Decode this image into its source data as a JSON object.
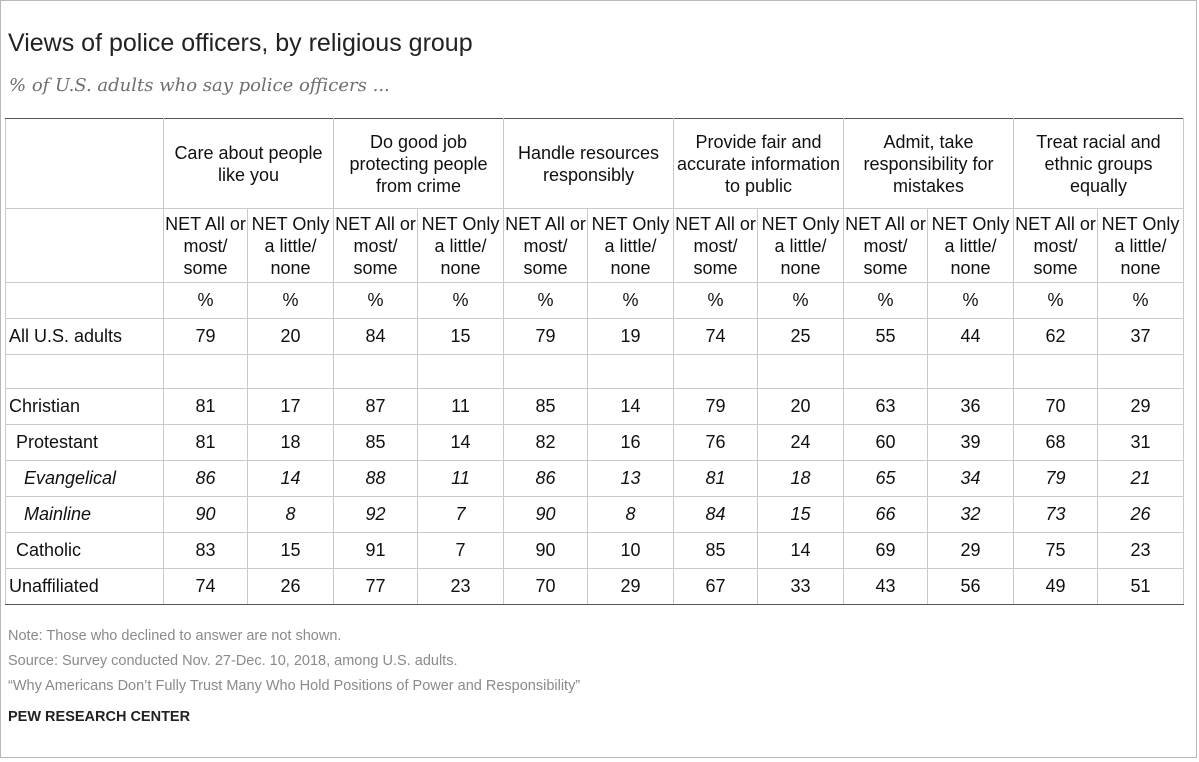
{
  "title": "Views of police officers, by religious group",
  "subtitle": "% of U.S. adults who say police officers ...",
  "groups": [
    "Care about people like you",
    "Do good job protecting people from crime",
    "Handle resources responsibly",
    "Provide fair and accurate information to public",
    "Admit, take responsibility for mistakes",
    "Treat racial and ethnic groups equally"
  ],
  "subheaders": {
    "net_all": "NET All or most/ some",
    "net_only": "NET Only a little/ none",
    "pct": "%"
  },
  "rows": [
    {
      "label": "All U.S. adults",
      "values": [
        "79",
        "20",
        "84",
        "15",
        "79",
        "19",
        "74",
        "25",
        "55",
        "44",
        "62",
        "37"
      ]
    },
    {
      "label": "Christian",
      "values": [
        "81",
        "17",
        "87",
        "11",
        "85",
        "14",
        "79",
        "20",
        "63",
        "36",
        "70",
        "29"
      ]
    },
    {
      "label": "Protestant",
      "values": [
        "81",
        "18",
        "85",
        "14",
        "82",
        "16",
        "76",
        "24",
        "60",
        "39",
        "68",
        "31"
      ]
    },
    {
      "label": "Evangelical",
      "values": [
        "86",
        "14",
        "88",
        "11",
        "86",
        "13",
        "81",
        "18",
        "65",
        "34",
        "79",
        "21"
      ]
    },
    {
      "label": "Mainline",
      "values": [
        "90",
        "8",
        "92",
        "7",
        "90",
        "8",
        "84",
        "15",
        "66",
        "32",
        "73",
        "26"
      ]
    },
    {
      "label": "Catholic",
      "values": [
        "83",
        "15",
        "91",
        "7",
        "90",
        "10",
        "85",
        "14",
        "69",
        "29",
        "75",
        "23"
      ]
    },
    {
      "label": "Unaffiliated",
      "values": [
        "74",
        "26",
        "77",
        "23",
        "70",
        "29",
        "67",
        "33",
        "43",
        "56",
        "49",
        "51"
      ]
    }
  ],
  "notes": [
    "Note: Those who declined to answer are not shown.",
    "Source: Survey conducted Nov. 27-Dec. 10, 2018, among U.S. adults.",
    "“Why Americans Don’t Fully Trust Many Who Hold Positions of Power and Responsibility”"
  ],
  "brand": "PEW RESEARCH CENTER"
}
